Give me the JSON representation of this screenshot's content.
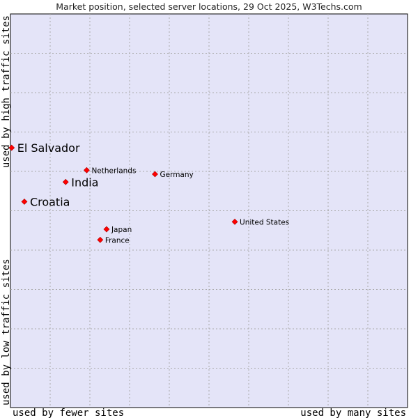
{
  "chart_data": {
    "type": "scatter",
    "title": "Market position, selected server locations, 29 Oct 2025, W3Techs.com",
    "xlabel_left": "used by fewer sites",
    "xlabel_right": "used by many sites",
    "ylabel_bottom": "used by low traffic sites",
    "ylabel_top": "used by high traffic sites",
    "xlim": [
      0,
      100
    ],
    "ylim": [
      0,
      100
    ],
    "grid": true,
    "colors": {
      "background": "#e4e4f8",
      "point": "#ff0000",
      "grid": "#aaaaaa"
    },
    "points": [
      {
        "label": "El Salvador",
        "x": 0.3,
        "y": 66.0,
        "highlight": true
      },
      {
        "label": "Netherlands",
        "x": 19.2,
        "y": 60.3,
        "highlight": false
      },
      {
        "label": "Germany",
        "x": 36.4,
        "y": 59.3,
        "highlight": false
      },
      {
        "label": "India",
        "x": 13.9,
        "y": 57.3,
        "highlight": true
      },
      {
        "label": "Croatia",
        "x": 3.5,
        "y": 52.3,
        "highlight": true
      },
      {
        "label": "United States",
        "x": 56.5,
        "y": 47.2,
        "highlight": false
      },
      {
        "label": "Japan",
        "x": 24.2,
        "y": 45.3,
        "highlight": false
      },
      {
        "label": "France",
        "x": 22.6,
        "y": 42.6,
        "highlight": false
      }
    ]
  }
}
